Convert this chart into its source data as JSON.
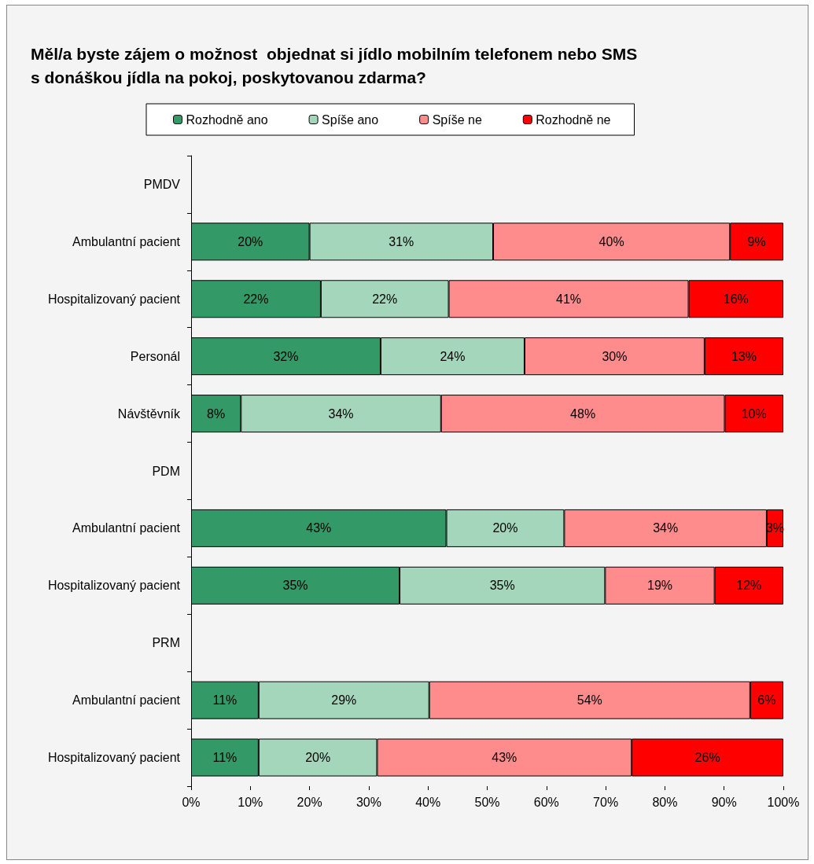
{
  "chart_data": {
    "type": "bar",
    "orientation": "horizontal",
    "stacked": true,
    "title": "Měl/a byste zájem o možnost  objednat si jídlo mobilním telefonem nebo SMS\ns donáškou jídla na pokoj, poskytovanou zdarma?",
    "categories": [
      "PMDV",
      "Ambulantní pacient",
      "Hospitalizovaný pacient",
      "Personál",
      "Návštěvník",
      "PDM",
      "Ambulantní pacient",
      "Hospitalizovaný pacient",
      "PRM",
      "Ambulantní pacient",
      "Hospitalizovaný pacient"
    ],
    "series": [
      {
        "name": "Rozhodně ano",
        "color": "#339966",
        "values": [
          null,
          20,
          21.9,
          32,
          8.4,
          null,
          43.1,
          35.2,
          null,
          11.4,
          11.4
        ],
        "value_labels": [
          null,
          "20%",
          "22%",
          "32%",
          "8%",
          null,
          "43%",
          "35%",
          null,
          "11%",
          "11%"
        ]
      },
      {
        "name": "Spíše ano",
        "color": "#a3d6ba",
        "values": [
          null,
          31,
          21.6,
          24.3,
          33.8,
          null,
          19.9,
          34.7,
          null,
          28.8,
          20
        ],
        "value_labels": [
          null,
          "31%",
          "22%",
          "24%",
          "34%",
          null,
          "20%",
          "35%",
          null,
          "29%",
          "20%"
        ]
      },
      {
        "name": "Spíše ne",
        "color": "#ff8c8c",
        "values": [
          null,
          40,
          40.5,
          30.4,
          47.9,
          null,
          34.2,
          18.5,
          null,
          54.2,
          43
        ],
        "value_labels": [
          null,
          "40%",
          "41%",
          "30%",
          "48%",
          null,
          "34%",
          "19%",
          null,
          "54%",
          "43%"
        ]
      },
      {
        "name": "Rozhodně ne",
        "color": "#ff0000",
        "values": [
          null,
          9,
          16,
          13.3,
          9.9,
          null,
          2.8,
          11.6,
          null,
          5.6,
          25.6
        ],
        "value_labels": [
          null,
          "9%",
          "16%",
          "13%",
          "10%",
          null,
          "3%",
          "12%",
          null,
          "6%",
          "26%"
        ]
      }
    ],
    "xlim": [
      0,
      100
    ],
    "xticks": [
      {
        "value": 0,
        "label": "0%"
      },
      {
        "value": 10,
        "label": "10%"
      },
      {
        "value": 20,
        "label": "20%"
      },
      {
        "value": 30,
        "label": "30%"
      },
      {
        "value": 40,
        "label": "40%"
      },
      {
        "value": 50,
        "label": "50%"
      },
      {
        "value": 60,
        "label": "60%"
      },
      {
        "value": 70,
        "label": "70%"
      },
      {
        "value": 80,
        "label": "80%"
      },
      {
        "value": 90,
        "label": "90%"
      },
      {
        "value": 100,
        "label": "100%"
      }
    ],
    "grid": false,
    "legend": "top"
  }
}
